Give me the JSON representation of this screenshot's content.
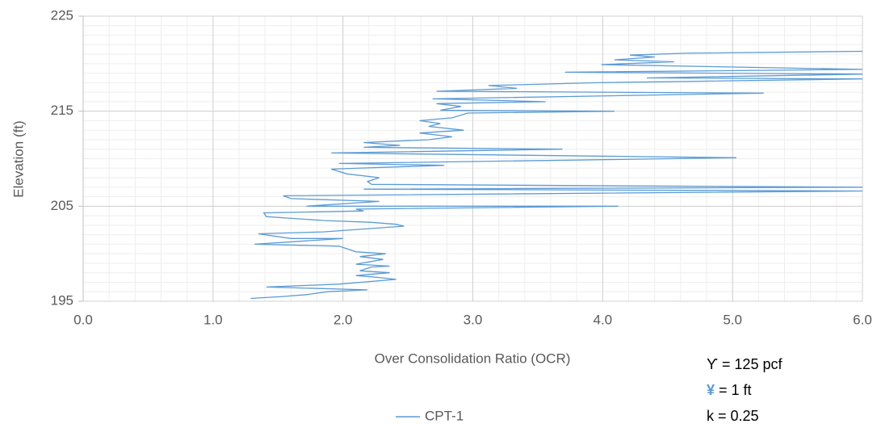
{
  "chart_data": {
    "type": "line",
    "xlabel": "Over Consolidation Ratio (OCR)",
    "ylabel": "Elevation (ft)",
    "xlim": [
      0,
      6
    ],
    "xticks": [
      {
        "value": 0,
        "label": "0.0"
      },
      {
        "value": 1,
        "label": "1.0"
      },
      {
        "value": 2,
        "label": "2.0"
      },
      {
        "value": 3,
        "label": "3.0"
      },
      {
        "value": 4,
        "label": "4.0"
      },
      {
        "value": 5,
        "label": "5.0"
      },
      {
        "value": 6,
        "label": "6.0"
      }
    ],
    "ylim": [
      195,
      225
    ],
    "yticks": [
      195,
      205,
      215,
      225
    ],
    "grid": true,
    "legend": "bottom",
    "series": [
      {
        "name": "CPT-1",
        "color": "#5b9bd5",
        "x": [
          1.29,
          1.54,
          1.72,
          1.88,
          2.19,
          1.41,
          1.97,
          2.41,
          2.28,
          2.1,
          2.36,
          2.13,
          2.22,
          2.36,
          2.1,
          2.31,
          2.13,
          2.33,
          2.1,
          1.97,
          1.32,
          2.0,
          1.6,
          1.35,
          1.85,
          2.47,
          2.41,
          2.22,
          1.85,
          1.41,
          1.39,
          2.16,
          2.1,
          4.12,
          1.72,
          2.28,
          1.6,
          1.54,
          6.0,
          2.16,
          6.0,
          2.22,
          2.19,
          2.28,
          2.03,
          1.91,
          2.78,
          1.97,
          5.03,
          1.91,
          3.69,
          2.16,
          2.44,
          2.16,
          2.66,
          2.84,
          2.59,
          2.93,
          2.66,
          2.75,
          2.59,
          2.84,
          2.96,
          4.09,
          2.75,
          2.91,
          2.72,
          3.56,
          2.69,
          5.24,
          2.72,
          3.34,
          3.12,
          3.96,
          6.0,
          4.34,
          6.0,
          3.71,
          6.0,
          3.99,
          4.55,
          4.09,
          4.4,
          4.21,
          4.65,
          6.0
        ],
        "values": [
          195.3,
          195.5,
          195.7,
          196.0,
          196.2,
          196.5,
          196.8,
          197.3,
          197.5,
          197.7,
          198.0,
          198.2,
          198.6,
          198.7,
          198.9,
          199.4,
          199.7,
          200.0,
          200.2,
          200.8,
          201.0,
          201.6,
          201.6,
          202.1,
          202.3,
          202.9,
          203.1,
          203.3,
          203.5,
          203.9,
          204.3,
          204.5,
          204.7,
          205.0,
          205.0,
          205.5,
          205.8,
          206.1,
          206.6,
          206.8,
          207.0,
          207.3,
          207.6,
          208.0,
          208.4,
          208.9,
          209.3,
          209.5,
          210.1,
          210.6,
          211.0,
          211.2,
          211.4,
          211.7,
          212.0,
          212.3,
          212.7,
          213.0,
          213.4,
          213.7,
          214.0,
          214.3,
          214.8,
          215.0,
          215.1,
          215.5,
          215.8,
          216.0,
          216.3,
          216.9,
          217.1,
          217.4,
          217.7,
          218.0,
          218.4,
          218.5,
          218.9,
          219.1,
          219.4,
          219.9,
          220.2,
          220.4,
          220.7,
          220.9,
          221.1,
          221.3
        ]
      }
    ],
    "annotations": [
      {
        "symbol": "ϒ",
        "text": "= 125 pcf",
        "symbol_color": "#000000"
      },
      {
        "symbol": "¥",
        "text": "= 1 ft",
        "symbol_color": "#5b9bd5"
      },
      {
        "symbol": "k",
        "text": "= 0.25",
        "symbol_color": "#000000"
      }
    ]
  }
}
